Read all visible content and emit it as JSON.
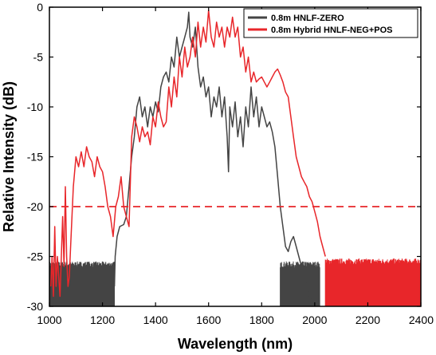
{
  "chart_data": {
    "type": "line",
    "xlabel": "Wavelength (nm)",
    "ylabel": "Relative Intensity (dB)",
    "xlim": [
      1000,
      2400
    ],
    "ylim": [
      -30,
      0
    ],
    "xticks": [
      1000,
      1200,
      1400,
      1600,
      1800,
      2000,
      2200,
      2400
    ],
    "yticks": [
      0,
      -5,
      -10,
      -15,
      -20,
      -25,
      -30
    ],
    "legend_position": "top-right",
    "reference_line": {
      "y": -20,
      "style": "dashed",
      "color": "#e8262a"
    },
    "series": [
      {
        "name": "0.8m HNLF-ZERO",
        "color": "#444444",
        "noise_floor": {
          "x_ranges": [
            [
              1000,
              1245
            ],
            [
              1870,
              2020
            ]
          ],
          "y_range": [
            -30,
            -25.8
          ]
        },
        "points": [
          [
            1245,
            -28
          ],
          [
            1248,
            -25
          ],
          [
            1255,
            -23
          ],
          [
            1265,
            -22
          ],
          [
            1280,
            -21.8
          ],
          [
            1290,
            -21
          ],
          [
            1300,
            -18
          ],
          [
            1310,
            -15
          ],
          [
            1320,
            -13
          ],
          [
            1330,
            -10
          ],
          [
            1340,
            -9
          ],
          [
            1350,
            -11
          ],
          [
            1360,
            -10
          ],
          [
            1370,
            -12
          ],
          [
            1380,
            -10
          ],
          [
            1390,
            -11
          ],
          [
            1400,
            -9.5
          ],
          [
            1410,
            -10.5
          ],
          [
            1420,
            -8
          ],
          [
            1430,
            -7
          ],
          [
            1440,
            -6.5
          ],
          [
            1450,
            -7.5
          ],
          [
            1460,
            -5
          ],
          [
            1470,
            -6
          ],
          [
            1480,
            -3
          ],
          [
            1490,
            -5
          ],
          [
            1500,
            -4
          ],
          [
            1510,
            -3
          ],
          [
            1520,
            -2
          ],
          [
            1525,
            -0.5
          ],
          [
            1530,
            -3
          ],
          [
            1540,
            -4
          ],
          [
            1550,
            -2
          ],
          [
            1560,
            -6
          ],
          [
            1570,
            -8
          ],
          [
            1580,
            -7
          ],
          [
            1590,
            -9
          ],
          [
            1600,
            -8
          ],
          [
            1610,
            -11
          ],
          [
            1620,
            -9
          ],
          [
            1630,
            -10
          ],
          [
            1640,
            -8
          ],
          [
            1650,
            -11
          ],
          [
            1660,
            -9
          ],
          [
            1670,
            -13
          ],
          [
            1675,
            -16.5
          ],
          [
            1680,
            -10
          ],
          [
            1690,
            -12
          ],
          [
            1700,
            -9.5
          ],
          [
            1710,
            -13
          ],
          [
            1720,
            -11
          ],
          [
            1730,
            -14
          ],
          [
            1740,
            -10
          ],
          [
            1750,
            -12
          ],
          [
            1760,
            -8
          ],
          [
            1770,
            -11
          ],
          [
            1780,
            -9
          ],
          [
            1790,
            -12
          ],
          [
            1800,
            -10
          ],
          [
            1810,
            -11
          ],
          [
            1820,
            -12
          ],
          [
            1830,
            -11.5
          ],
          [
            1840,
            -12.5
          ],
          [
            1850,
            -14
          ],
          [
            1860,
            -17
          ],
          [
            1870,
            -20
          ],
          [
            1880,
            -22
          ],
          [
            1890,
            -24
          ],
          [
            1900,
            -24.5
          ],
          [
            1910,
            -23.5
          ],
          [
            1920,
            -23
          ],
          [
            1930,
            -24
          ],
          [
            1940,
            -25
          ],
          [
            1950,
            -26
          ],
          [
            1960,
            -27
          ],
          [
            1970,
            -28
          ],
          [
            1980,
            -29
          ],
          [
            1990,
            -29.5
          ],
          [
            2000,
            -30
          ]
        ]
      },
      {
        "name": "0.8m Hybrid HNLF-NEG+POS",
        "color": "#e8262a",
        "noise_floor": {
          "x_ranges": [
            [
              2040,
              2400
            ]
          ],
          "y_range": [
            -30,
            -25.5
          ]
        },
        "points": [
          [
            1005,
            -28
          ],
          [
            1010,
            -25
          ],
          [
            1015,
            -29
          ],
          [
            1020,
            -22
          ],
          [
            1025,
            -28
          ],
          [
            1030,
            -25
          ],
          [
            1040,
            -29
          ],
          [
            1050,
            -21
          ],
          [
            1055,
            -26
          ],
          [
            1060,
            -18
          ],
          [
            1065,
            -25
          ],
          [
            1070,
            -28
          ],
          [
            1075,
            -27
          ],
          [
            1080,
            -24
          ],
          [
            1090,
            -18
          ],
          [
            1100,
            -15
          ],
          [
            1110,
            -16
          ],
          [
            1120,
            -14.5
          ],
          [
            1130,
            -16
          ],
          [
            1140,
            -14
          ],
          [
            1150,
            -15
          ],
          [
            1160,
            -15.5
          ],
          [
            1170,
            -17
          ],
          [
            1180,
            -15
          ],
          [
            1190,
            -16
          ],
          [
            1200,
            -16.5
          ],
          [
            1210,
            -18
          ],
          [
            1220,
            -20
          ],
          [
            1230,
            -21
          ],
          [
            1240,
            -23
          ],
          [
            1250,
            -20
          ],
          [
            1260,
            -19
          ],
          [
            1270,
            -17
          ],
          [
            1280,
            -20
          ],
          [
            1290,
            -21
          ],
          [
            1300,
            -22
          ],
          [
            1310,
            -13
          ],
          [
            1320,
            -11
          ],
          [
            1330,
            -12
          ],
          [
            1340,
            -13.5
          ],
          [
            1350,
            -12
          ],
          [
            1360,
            -13
          ],
          [
            1370,
            -12.5
          ],
          [
            1380,
            -13.8
          ],
          [
            1390,
            -11
          ],
          [
            1400,
            -12
          ],
          [
            1410,
            -9.5
          ],
          [
            1420,
            -11
          ],
          [
            1430,
            -12
          ],
          [
            1440,
            -11.5
          ],
          [
            1450,
            -8
          ],
          [
            1460,
            -10
          ],
          [
            1470,
            -7
          ],
          [
            1480,
            -9
          ],
          [
            1490,
            -5
          ],
          [
            1500,
            -7
          ],
          [
            1510,
            -4
          ],
          [
            1520,
            -6
          ],
          [
            1530,
            -5
          ],
          [
            1540,
            -3
          ],
          [
            1550,
            -5
          ],
          [
            1560,
            -1.5
          ],
          [
            1570,
            -4
          ],
          [
            1580,
            -2
          ],
          [
            1590,
            -3.5
          ],
          [
            1600,
            -0.3
          ],
          [
            1610,
            -3
          ],
          [
            1620,
            -4
          ],
          [
            1630,
            -1.5
          ],
          [
            1640,
            -3
          ],
          [
            1650,
            -2
          ],
          [
            1660,
            -4
          ],
          [
            1670,
            -2
          ],
          [
            1680,
            -3
          ],
          [
            1690,
            -1
          ],
          [
            1700,
            -3
          ],
          [
            1710,
            -2
          ],
          [
            1720,
            -5
          ],
          [
            1730,
            -4
          ],
          [
            1740,
            -6.5
          ],
          [
            1750,
            -5
          ],
          [
            1760,
            -7.5
          ],
          [
            1770,
            -6.5
          ],
          [
            1780,
            -7.5
          ],
          [
            1790,
            -7.2
          ],
          [
            1800,
            -7
          ],
          [
            1810,
            -7.5
          ],
          [
            1820,
            -8
          ],
          [
            1830,
            -7.5
          ],
          [
            1840,
            -7
          ],
          [
            1850,
            -6.5
          ],
          [
            1860,
            -6.2
          ],
          [
            1870,
            -6.8
          ],
          [
            1880,
            -7.5
          ],
          [
            1890,
            -8.5
          ],
          [
            1900,
            -9
          ],
          [
            1910,
            -11
          ],
          [
            1920,
            -13
          ],
          [
            1930,
            -15
          ],
          [
            1940,
            -16
          ],
          [
            1950,
            -17
          ],
          [
            1960,
            -17.5
          ],
          [
            1970,
            -18
          ],
          [
            1980,
            -19
          ],
          [
            1990,
            -19.5
          ],
          [
            2000,
            -20.5
          ],
          [
            2010,
            -21.5
          ],
          [
            2020,
            -23
          ],
          [
            2030,
            -24
          ],
          [
            2040,
            -25
          ]
        ]
      }
    ]
  }
}
